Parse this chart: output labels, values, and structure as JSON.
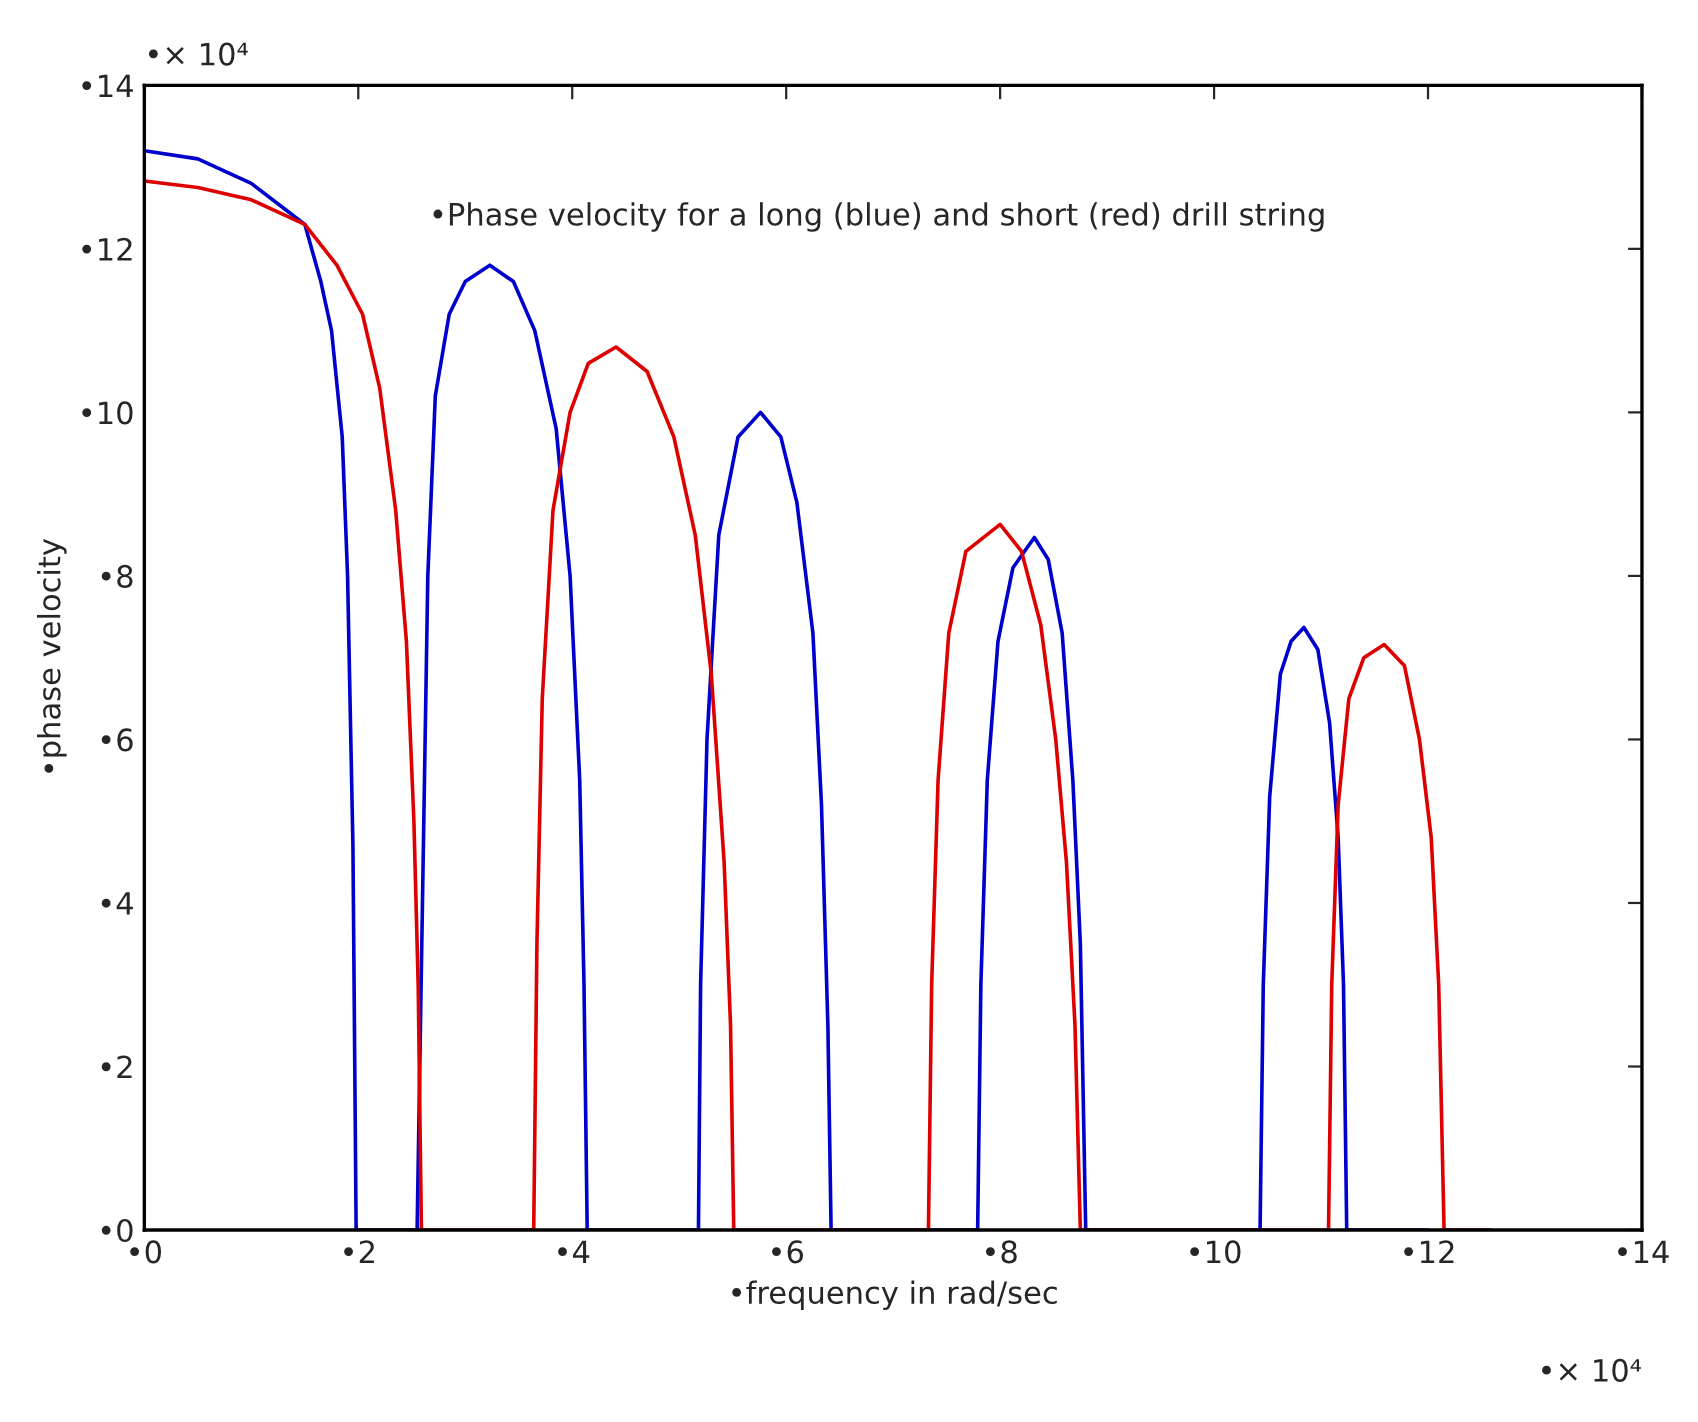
{
  "chart_data": {
    "type": "line",
    "xlabel": "•frequency in rad/sec",
    "ylabel": "•phase velocity",
    "annotations": [
      "•Phase velocity for a long (blue) and short (red) drill string",
      "•× 10⁴",
      "•× 10⁴"
    ],
    "xlim": [
      0,
      14
    ],
    "ylim": [
      0,
      14
    ],
    "xticks": [
      {
        "value": 0,
        "label": "•0"
      },
      {
        "value": 2,
        "label": "•2"
      },
      {
        "value": 4,
        "label": "•4"
      },
      {
        "value": 6,
        "label": "•6"
      },
      {
        "value": 8,
        "label": "•8"
      },
      {
        "value": 10,
        "label": "•10"
      },
      {
        "value": 12,
        "label": "•12"
      },
      {
        "value": 14,
        "label": "•14"
      }
    ],
    "yticks": [
      {
        "value": 0,
        "label": "•0"
      },
      {
        "value": 2,
        "label": "•2"
      },
      {
        "value": 4,
        "label": "•4"
      },
      {
        "value": 6,
        "label": "•6"
      },
      {
        "value": 8,
        "label": "•8"
      },
      {
        "value": 10,
        "label": "•10"
      },
      {
        "value": 12,
        "label": "•12"
      },
      {
        "value": 14,
        "label": "•14"
      }
    ],
    "grid": false,
    "legend": false,
    "line_style": "solid",
    "marker": "none",
    "series": [
      {
        "color": "#0000cc",
        "x": [
          0,
          0.5,
          1.0,
          1.3,
          1.5,
          1.65,
          1.75,
          1.85,
          1.9,
          1.95,
          1.98,
          2.55,
          2.6,
          2.65,
          2.72,
          2.85,
          3.0,
          3.23,
          3.45,
          3.65,
          3.85,
          3.98,
          4.07,
          4.11,
          4.14,
          5.18,
          5.2,
          5.26,
          5.37,
          5.55,
          5.76,
          5.95,
          6.1,
          6.25,
          6.33,
          6.39,
          6.42,
          7.79,
          7.82,
          7.88,
          7.98,
          8.12,
          8.32,
          8.45,
          8.58,
          8.68,
          8.75,
          8.8,
          10.43,
          10.46,
          10.52,
          10.62,
          10.72,
          10.84,
          10.97,
          11.08,
          11.16,
          11.21,
          11.24,
          12.0
        ],
        "values": [
          13.2,
          13.1,
          12.8,
          12.5,
          12.3,
          11.6,
          11.0,
          9.7,
          8.0,
          4.7,
          0,
          0,
          4.0,
          8.0,
          10.2,
          11.2,
          11.6,
          11.8,
          11.6,
          11.0,
          9.8,
          8.0,
          5.5,
          3.0,
          0,
          0,
          3.0,
          6.0,
          8.5,
          9.7,
          10.0,
          9.7,
          8.9,
          7.3,
          5.2,
          2.5,
          0,
          0,
          3.0,
          5.5,
          7.2,
          8.1,
          8.47,
          8.2,
          7.3,
          5.5,
          3.5,
          0,
          0,
          3.0,
          5.3,
          6.8,
          7.2,
          7.37,
          7.1,
          6.2,
          4.8,
          3.0,
          0,
          0
        ]
      },
      {
        "color": "#dd0000",
        "x": [
          0,
          0.5,
          1.0,
          1.5,
          1.8,
          2.04,
          2.2,
          2.35,
          2.45,
          2.52,
          2.56,
          2.59,
          3.64,
          3.67,
          3.72,
          3.82,
          3.98,
          4.15,
          4.41,
          4.7,
          4.95,
          5.15,
          5.3,
          5.42,
          5.48,
          5.51,
          7.33,
          7.36,
          7.42,
          7.52,
          7.68,
          8.0,
          8.2,
          8.38,
          8.52,
          8.62,
          8.7,
          8.75,
          11.07,
          11.1,
          11.16,
          11.26,
          11.4,
          11.59,
          11.78,
          11.92,
          12.03,
          12.1,
          12.15,
          12.59
        ],
        "values": [
          12.83,
          12.75,
          12.6,
          12.3,
          11.8,
          11.2,
          10.3,
          8.8,
          7.2,
          5.0,
          3.0,
          0,
          0,
          3.5,
          6.5,
          8.8,
          10.0,
          10.6,
          10.8,
          10.5,
          9.7,
          8.5,
          6.8,
          4.5,
          2.5,
          0,
          0,
          3.0,
          5.5,
          7.3,
          8.3,
          8.63,
          8.3,
          7.4,
          6.0,
          4.5,
          2.5,
          0,
          0,
          3.0,
          5.2,
          6.5,
          7.0,
          7.16,
          6.9,
          6.0,
          4.8,
          3.0,
          0,
          0
        ]
      }
    ]
  }
}
